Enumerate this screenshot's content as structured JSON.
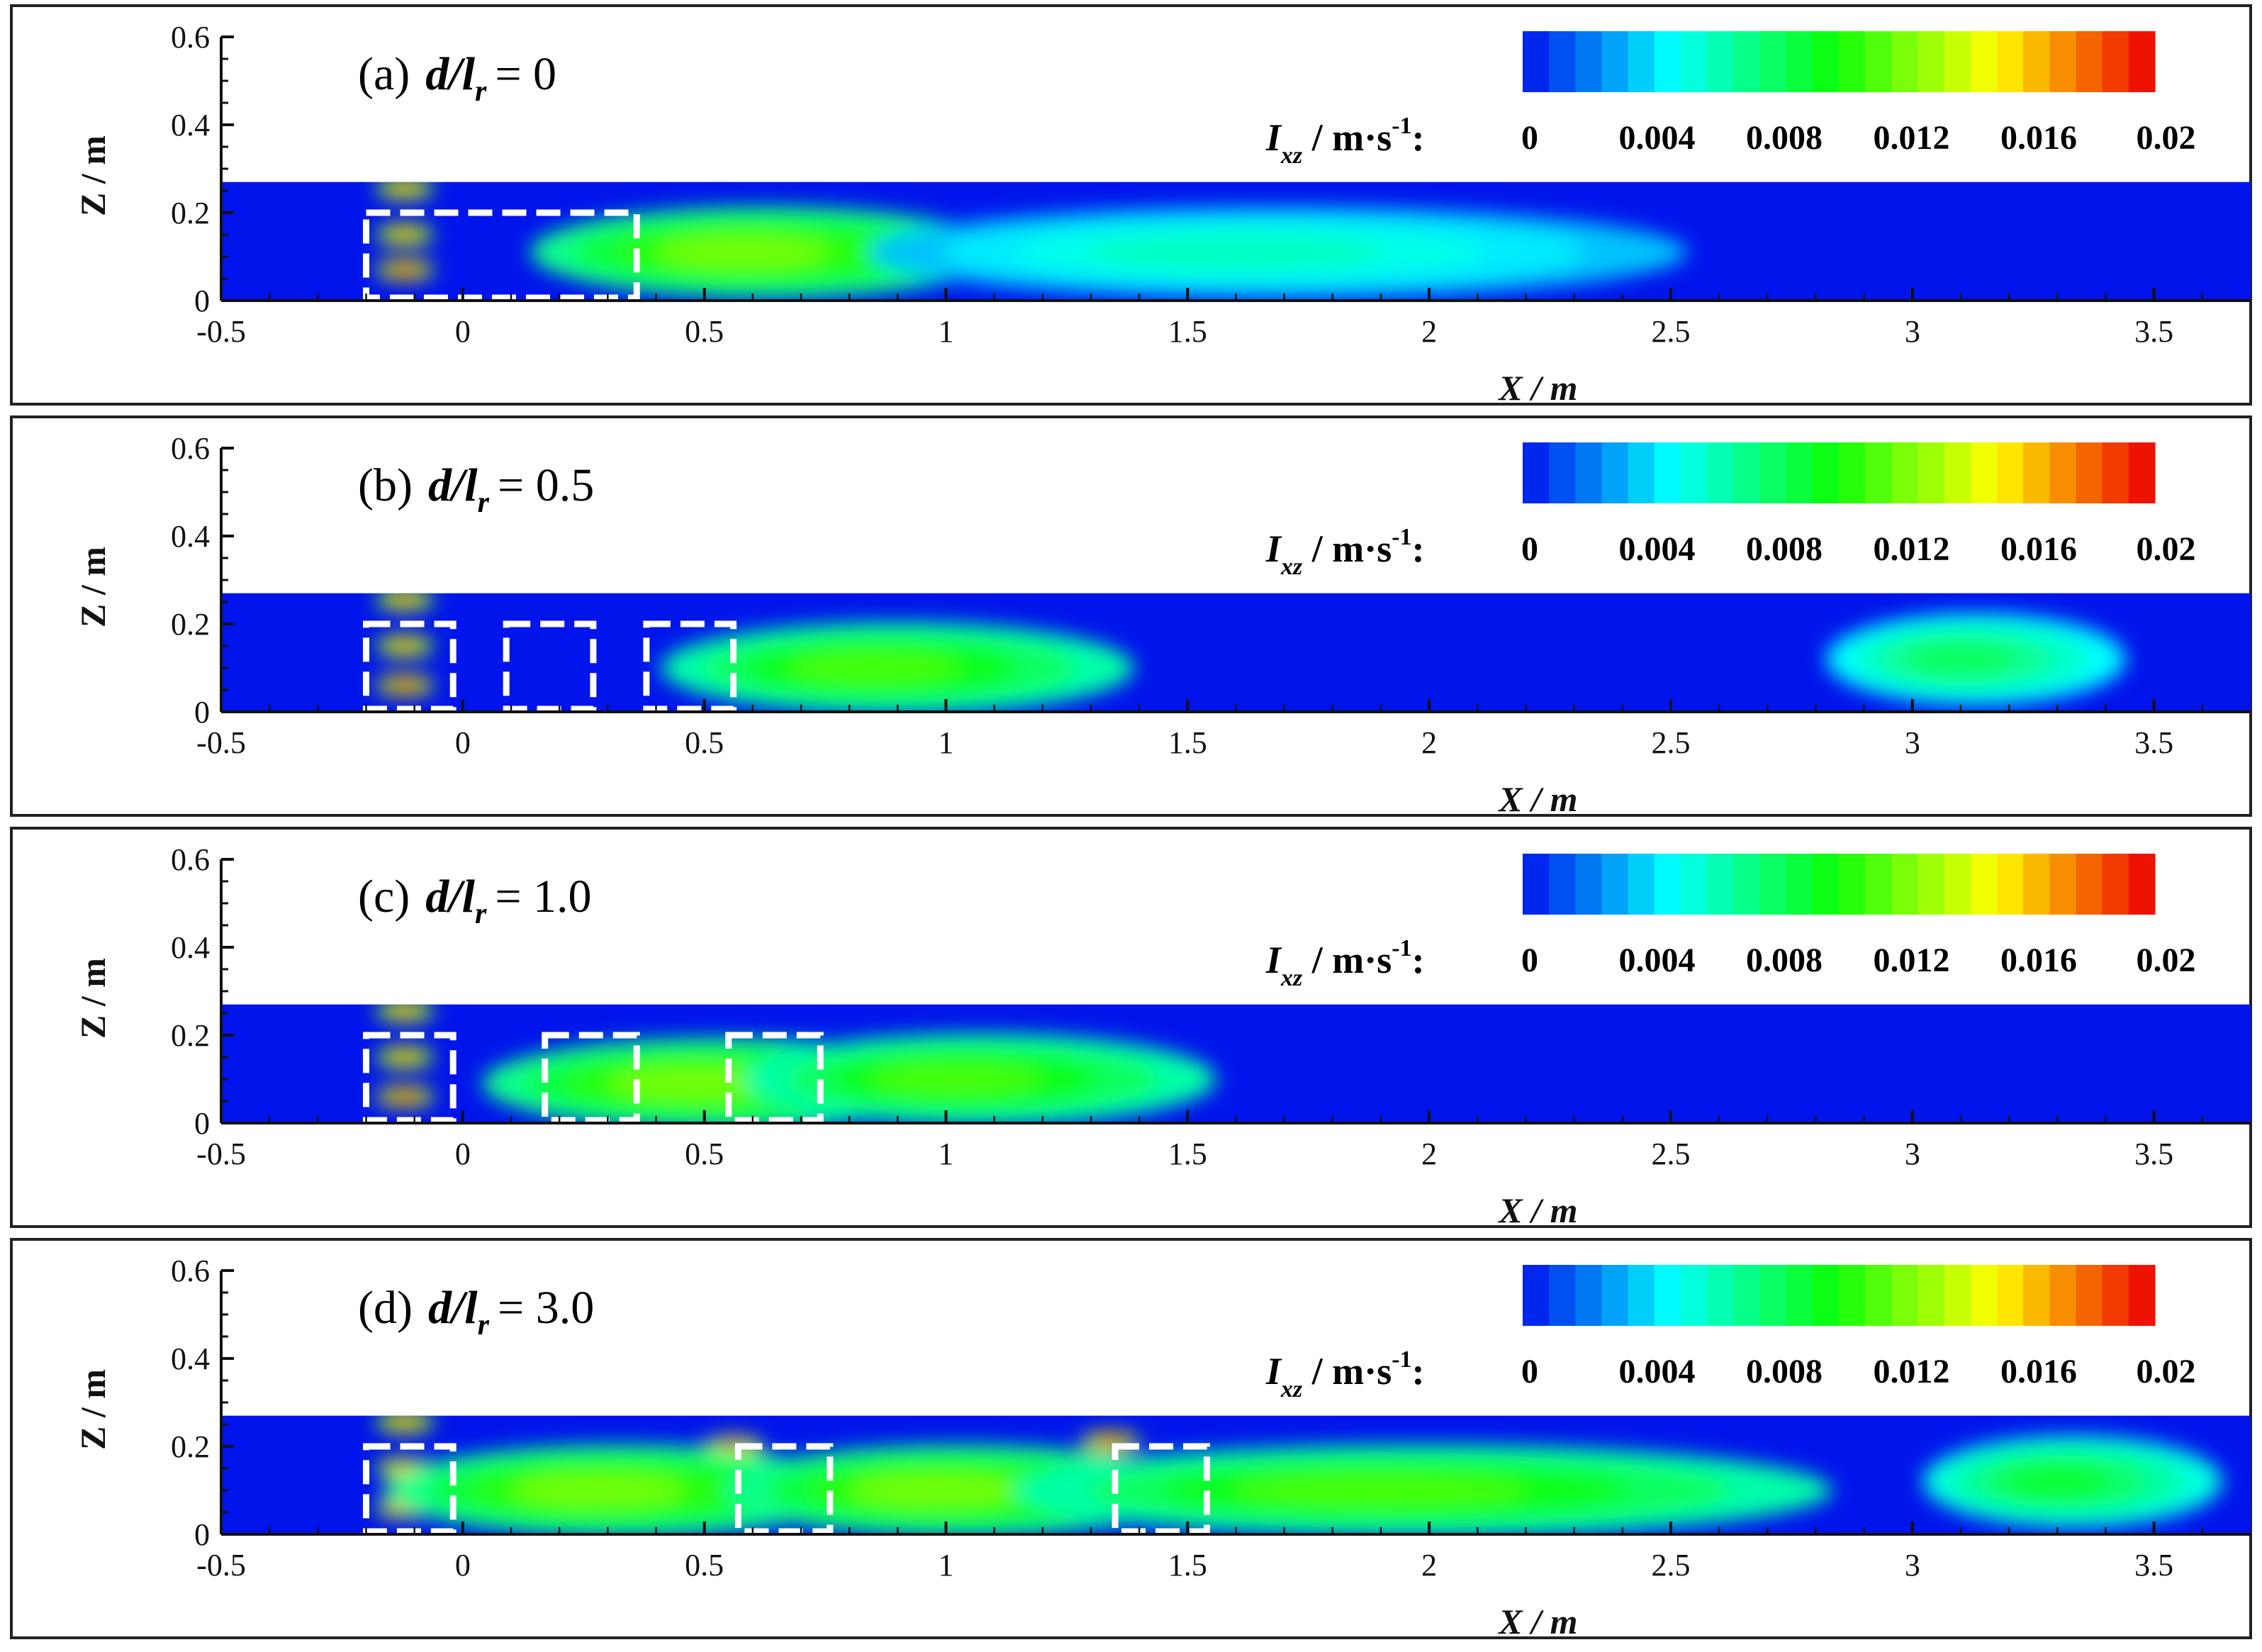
{
  "chart_data": [
    {
      "type": "heatmap",
      "panel_label": "(a)",
      "condition_symbol": "d/l",
      "condition_subscript": "r",
      "condition_value": "= 0",
      "xlabel": "X / m",
      "ylabel": "Z / m",
      "xlim": [
        -0.5,
        3.7
      ],
      "ylim": [
        0,
        0.6
      ],
      "xticks": [
        "-0.5",
        "0",
        "0.5",
        "1",
        "1.5",
        "2",
        "2.5",
        "3",
        "3.5"
      ],
      "yticks": [
        "0",
        "0.2",
        "0.4",
        "0.6"
      ],
      "water_depth": 0.27,
      "colorbar": {
        "label_main": "I",
        "label_sub": "xz",
        "label_unit": " / m·s",
        "label_exp": "-1",
        "label_colon": ":",
        "range": [
          0,
          0.02
        ],
        "ticks": [
          "0",
          "0.004",
          "0.008",
          "0.012",
          "0.016",
          "0.02"
        ]
      },
      "structures": [
        {
          "x_start": -0.2,
          "x_end": 0.36,
          "z_top": 0.2
        }
      ],
      "hotspots": [
        {
          "x": -0.12,
          "z": 0.255,
          "value": 0.018
        },
        {
          "x": -0.12,
          "z": 0.15,
          "value": 0.018
        },
        {
          "x": -0.12,
          "z": 0.07,
          "value": 0.02
        },
        {
          "x": 0.58,
          "z": 0.11,
          "value": 0.012
        },
        {
          "x": 1.6,
          "z": 0.11,
          "value": 0.006
        }
      ]
    },
    {
      "type": "heatmap",
      "panel_label": "(b)",
      "condition_symbol": "d/l",
      "condition_subscript": "r",
      "condition_value": "= 0.5",
      "xlabel": "X / m",
      "ylabel": "Z / m",
      "xlim": [
        -0.5,
        3.7
      ],
      "ylim": [
        0,
        0.6
      ],
      "xticks": [
        "-0.5",
        "0",
        "0.5",
        "1",
        "1.5",
        "2",
        "2.5",
        "3",
        "3.5"
      ],
      "yticks": [
        "0",
        "0.2",
        "0.4",
        "0.6"
      ],
      "water_depth": 0.27,
      "colorbar": {
        "label_main": "I",
        "label_sub": "xz",
        "label_unit": " / m·s",
        "label_exp": "-1",
        "label_colon": ":",
        "range": [
          0,
          0.02
        ],
        "ticks": [
          "0",
          "0.004",
          "0.008",
          "0.012",
          "0.016",
          "0.02"
        ]
      },
      "structures": [
        {
          "x_start": -0.2,
          "x_end": -0.02,
          "z_top": 0.2
        },
        {
          "x_start": 0.09,
          "x_end": 0.27,
          "z_top": 0.2
        },
        {
          "x_start": 0.38,
          "x_end": 0.56,
          "z_top": 0.2
        }
      ],
      "hotspots": [
        {
          "x": -0.12,
          "z": 0.255,
          "value": 0.018
        },
        {
          "x": -0.12,
          "z": 0.15,
          "value": 0.018
        },
        {
          "x": -0.12,
          "z": 0.06,
          "value": 0.02
        },
        {
          "x": 0.85,
          "z": 0.1,
          "value": 0.011
        },
        {
          "x": 3.1,
          "z": 0.12,
          "value": 0.008
        }
      ]
    },
    {
      "type": "heatmap",
      "panel_label": "(c)",
      "condition_symbol": "d/l",
      "condition_subscript": "r",
      "condition_value": "= 1.0",
      "xlabel": "X / m",
      "ylabel": "Z / m",
      "xlim": [
        -0.5,
        3.7
      ],
      "ylim": [
        0,
        0.6
      ],
      "xticks": [
        "-0.5",
        "0",
        "0.5",
        "1",
        "1.5",
        "2",
        "2.5",
        "3",
        "3.5"
      ],
      "yticks": [
        "0",
        "0.2",
        "0.4",
        "0.6"
      ],
      "water_depth": 0.27,
      "colorbar": {
        "label_main": "I",
        "label_sub": "xz",
        "label_unit": " / m·s",
        "label_exp": "-1",
        "label_colon": ":",
        "range": [
          0,
          0.02
        ],
        "ticks": [
          "0",
          "0.004",
          "0.008",
          "0.012",
          "0.016",
          "0.02"
        ]
      },
      "structures": [
        {
          "x_start": -0.2,
          "x_end": -0.02,
          "z_top": 0.2
        },
        {
          "x_start": 0.17,
          "x_end": 0.36,
          "z_top": 0.2
        },
        {
          "x_start": 0.55,
          "x_end": 0.74,
          "z_top": 0.2
        }
      ],
      "hotspots": [
        {
          "x": -0.12,
          "z": 0.255,
          "value": 0.018
        },
        {
          "x": -0.12,
          "z": 0.15,
          "value": 0.018
        },
        {
          "x": -0.12,
          "z": 0.06,
          "value": 0.02
        },
        {
          "x": 0.48,
          "z": 0.09,
          "value": 0.012
        },
        {
          "x": 1.02,
          "z": 0.1,
          "value": 0.011
        }
      ]
    },
    {
      "type": "heatmap",
      "panel_label": "(d)",
      "condition_symbol": "d/l",
      "condition_subscript": "r",
      "condition_value": "= 3.0",
      "xlabel": "X / m",
      "ylabel": "Z / m",
      "xlim": [
        -0.5,
        3.7
      ],
      "ylim": [
        0,
        0.6
      ],
      "xticks": [
        "-0.5",
        "0",
        "0.5",
        "1",
        "1.5",
        "2",
        "2.5",
        "3",
        "3.5"
      ],
      "yticks": [
        "0",
        "0.2",
        "0.4",
        "0.6"
      ],
      "water_depth": 0.27,
      "colorbar": {
        "label_main": "I",
        "label_sub": "xz",
        "label_unit": " / m·s",
        "label_exp": "-1",
        "label_colon": ":",
        "range": [
          0,
          0.02
        ],
        "ticks": [
          "0",
          "0.004",
          "0.008",
          "0.012",
          "0.016",
          "0.02"
        ]
      },
      "structures": [
        {
          "x_start": -0.2,
          "x_end": -0.02,
          "z_top": 0.2
        },
        {
          "x_start": 0.57,
          "x_end": 0.76,
          "z_top": 0.2
        },
        {
          "x_start": 1.35,
          "x_end": 1.54,
          "z_top": 0.2
        }
      ],
      "hotspots": [
        {
          "x": -0.12,
          "z": 0.255,
          "value": 0.018
        },
        {
          "x": -0.12,
          "z": 0.15,
          "value": 0.018
        },
        {
          "x": -0.12,
          "z": 0.06,
          "value": 0.019
        },
        {
          "x": 0.56,
          "z": 0.2,
          "value": 0.02
        },
        {
          "x": 1.34,
          "z": 0.21,
          "value": 0.02
        },
        {
          "x": 0.28,
          "z": 0.1,
          "value": 0.012
        },
        {
          "x": 0.98,
          "z": 0.1,
          "value": 0.012
        },
        {
          "x": 1.9,
          "z": 0.1,
          "value": 0.011
        },
        {
          "x": 3.3,
          "z": 0.12,
          "value": 0.009
        }
      ]
    }
  ]
}
